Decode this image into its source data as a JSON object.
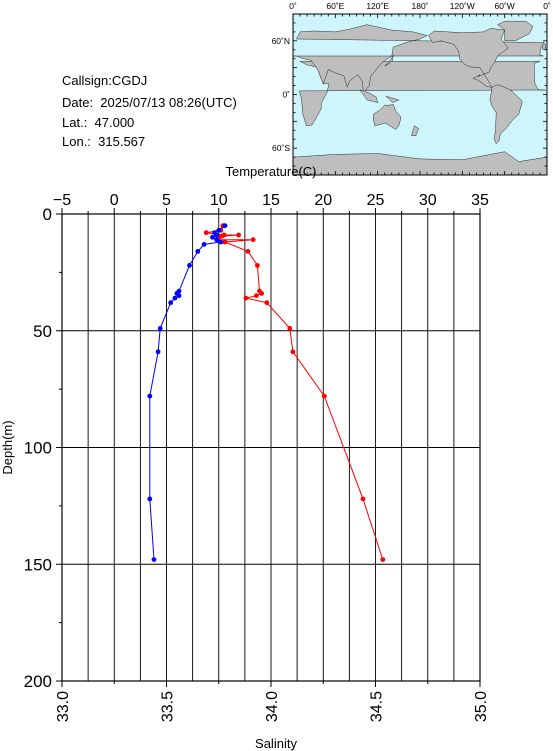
{
  "station": {
    "callsign": "Callsign:CGDJ",
    "date": "Date:  2025/07/13 08:26(UTC)",
    "lat": "Lat.:  47.000",
    "lon": "Lon.:  315.567"
  },
  "map": {
    "top_labels": [
      "0˚",
      "60˚E",
      "120˚E",
      "180˚",
      "120˚W",
      "60˚W",
      "0˚"
    ],
    "left_labels": [
      "60˚N",
      "0˚",
      "60˚S"
    ],
    "ocean_color": "#cdf5fb",
    "land_color": "#bebebe",
    "marker_color": "#ff0000",
    "marker_icon": "star-icon"
  },
  "chart_data": {
    "type": "line",
    "ylabel": "Depth(m)",
    "ylim": [
      0,
      200
    ],
    "y_inverted": true,
    "yticks": [
      "0",
      "50",
      "100",
      "150",
      "200"
    ],
    "top_axis": {
      "label": "Temperature(C)",
      "lim": [
        -5,
        35
      ],
      "ticks": [
        "−5",
        "0",
        "5",
        "10",
        "15",
        "20",
        "25",
        "30",
        "35"
      ]
    },
    "bottom_axis": {
      "label": "Salinity",
      "lim": [
        33.0,
        35.0
      ],
      "ticks": [
        "33.0",
        "33.5",
        "34.0",
        "34.5",
        "35.0"
      ]
    },
    "grid": true,
    "series": [
      {
        "color": "#ff0000",
        "axis": "top",
        "points": [
          [
            10.4,
            5
          ],
          [
            10.2,
            7
          ],
          [
            8.8,
            8
          ],
          [
            10.5,
            9
          ],
          [
            11.9,
            9
          ],
          [
            10.3,
            9.5
          ],
          [
            10.0,
            10
          ],
          [
            9.8,
            11
          ],
          [
            13.3,
            11
          ],
          [
            10.6,
            12
          ],
          [
            12.8,
            16
          ],
          [
            13.7,
            22
          ],
          [
            13.9,
            33
          ],
          [
            14.1,
            34
          ],
          [
            13.6,
            35
          ],
          [
            12.6,
            36
          ],
          [
            14.6,
            38
          ],
          [
            16.8,
            49
          ],
          [
            17.1,
            59
          ],
          [
            20.1,
            78
          ],
          [
            23.8,
            122
          ],
          [
            25.7,
            148
          ]
        ]
      },
      {
        "color": "#0000ff",
        "axis": "bottom",
        "points": [
          [
            33.78,
            5
          ],
          [
            33.75,
            7
          ],
          [
            33.73,
            8
          ],
          [
            33.74,
            9
          ],
          [
            33.72,
            10
          ],
          [
            33.74,
            11
          ],
          [
            33.76,
            12
          ],
          [
            33.68,
            13
          ],
          [
            33.65,
            16
          ],
          [
            33.61,
            22
          ],
          [
            33.56,
            33
          ],
          [
            33.55,
            34
          ],
          [
            33.56,
            35
          ],
          [
            33.54,
            36
          ],
          [
            33.52,
            38
          ],
          [
            33.47,
            49
          ],
          [
            33.46,
            59
          ],
          [
            33.42,
            78
          ],
          [
            33.42,
            122
          ],
          [
            33.44,
            148
          ]
        ]
      }
    ]
  }
}
